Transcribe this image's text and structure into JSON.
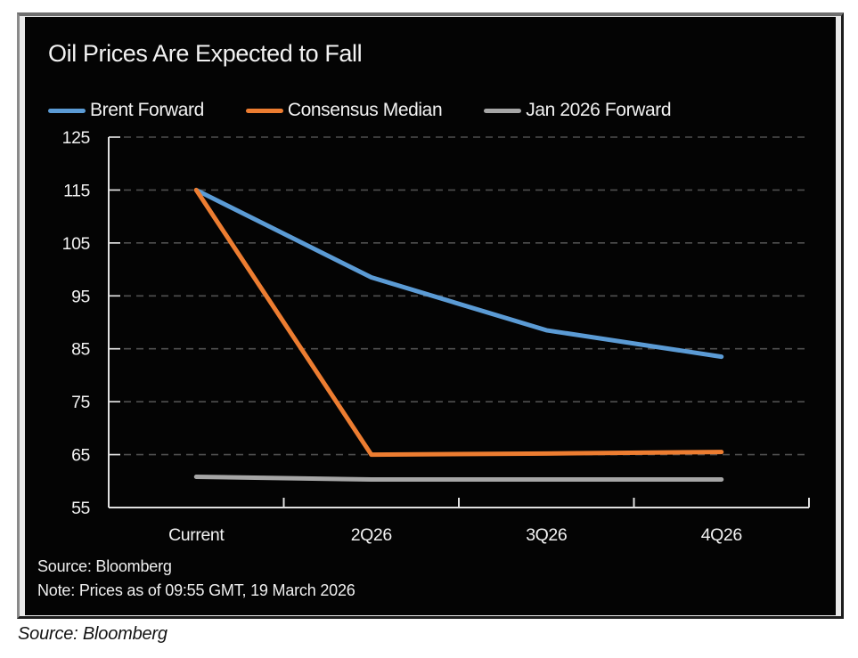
{
  "page": {
    "caption": "Source: Bloomberg"
  },
  "chart": {
    "source_line": "Source: Bloomberg",
    "note_line": "Note: Prices as of 09:55 GMT, 19 March 2026"
  },
  "chart_data": {
    "type": "line",
    "title": "Oil Prices Are Expected to Fall",
    "categories": [
      "Current",
      "2Q26",
      "3Q26",
      "4Q26"
    ],
    "series": [
      {
        "name": "Brent Forward",
        "color": "#5B9BD5",
        "values": [
          115,
          98.5,
          88.5,
          83.5
        ]
      },
      {
        "name": "Consensus Median",
        "color": "#ED7D31",
        "values": [
          115,
          65,
          65.2,
          65.5
        ]
      },
      {
        "name": "Jan 2026 Forward",
        "color": "#A6A6A6",
        "values": [
          60.8,
          60.3,
          60.3,
          60.3
        ]
      }
    ],
    "ylim": [
      55,
      125
    ],
    "ytick_step": 10,
    "ytick_labels": [
      "55",
      "65",
      "75",
      "85",
      "95",
      "105",
      "115",
      "125"
    ],
    "grid": "horizontal-dashed",
    "legend_position": "top",
    "background_color": "#040404",
    "text_color": "#f2f2f2",
    "grid_color": "#4f4f4f",
    "axis_color": "#e0e0e0"
  }
}
